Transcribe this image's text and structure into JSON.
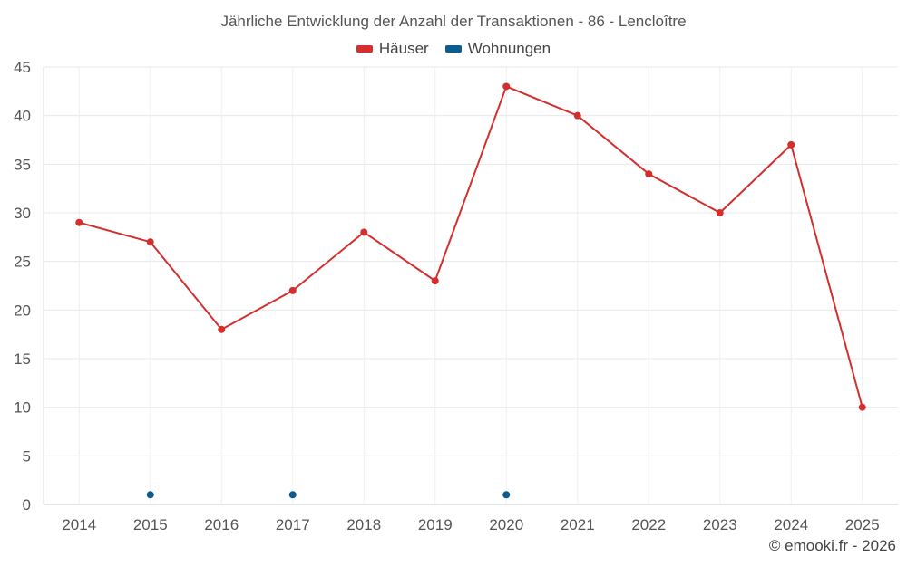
{
  "chart_data": {
    "type": "line",
    "title": "Jährliche Entwicklung der Anzahl der Transaktionen - 86 - Lencloître",
    "categories": [
      "2014",
      "2015",
      "2016",
      "2017",
      "2018",
      "2019",
      "2020",
      "2021",
      "2022",
      "2023",
      "2024",
      "2025"
    ],
    "series": [
      {
        "name": "Häuser",
        "color": "#d32f2f",
        "values": [
          29,
          27,
          18,
          22,
          28,
          23,
          43,
          40,
          34,
          30,
          37,
          10
        ]
      },
      {
        "name": "Wohnungen",
        "color": "#0b5c8f",
        "values": [
          null,
          1,
          null,
          1,
          null,
          null,
          1,
          null,
          null,
          null,
          null,
          null
        ]
      }
    ],
    "ylim": [
      0,
      45
    ],
    "yticks": [
      0,
      5,
      10,
      15,
      20,
      25,
      30,
      35,
      40,
      45
    ],
    "grid": true,
    "legend_position": "top-center",
    "xlabel": "",
    "ylabel": ""
  },
  "credit": "© emooki.fr - 2026"
}
